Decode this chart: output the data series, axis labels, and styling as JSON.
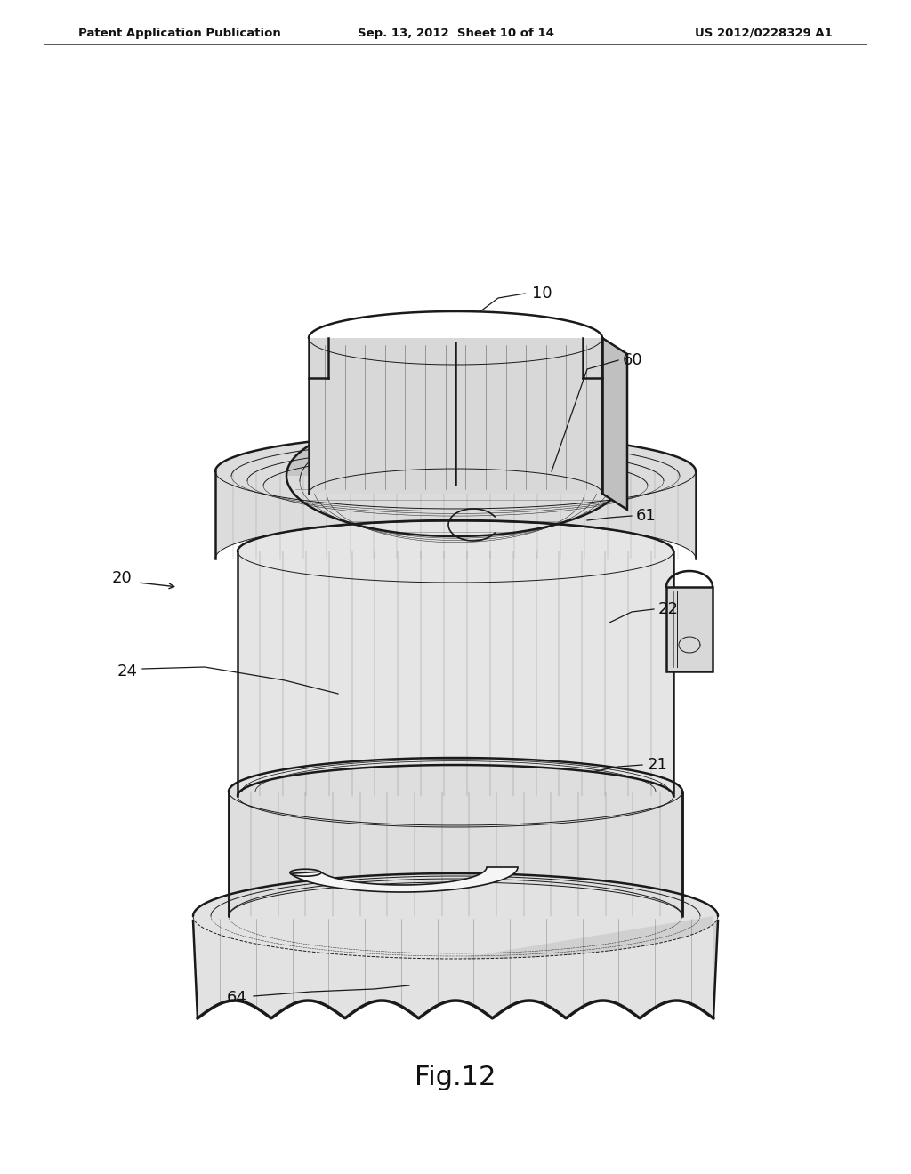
{
  "header_left": "Patent Application Publication",
  "header_center": "Sep. 13, 2012  Sheet 10 of 14",
  "header_right": "US 2012/0228329 A1",
  "figure_label": "Fig.12",
  "background_color": "#ffffff",
  "line_color": "#1a1a1a",
  "fill_light": "#e8e8e8",
  "fill_mid": "#d0d0d0",
  "fill_dark": "#b8b8b8",
  "fill_inner": "#c8c8c8"
}
